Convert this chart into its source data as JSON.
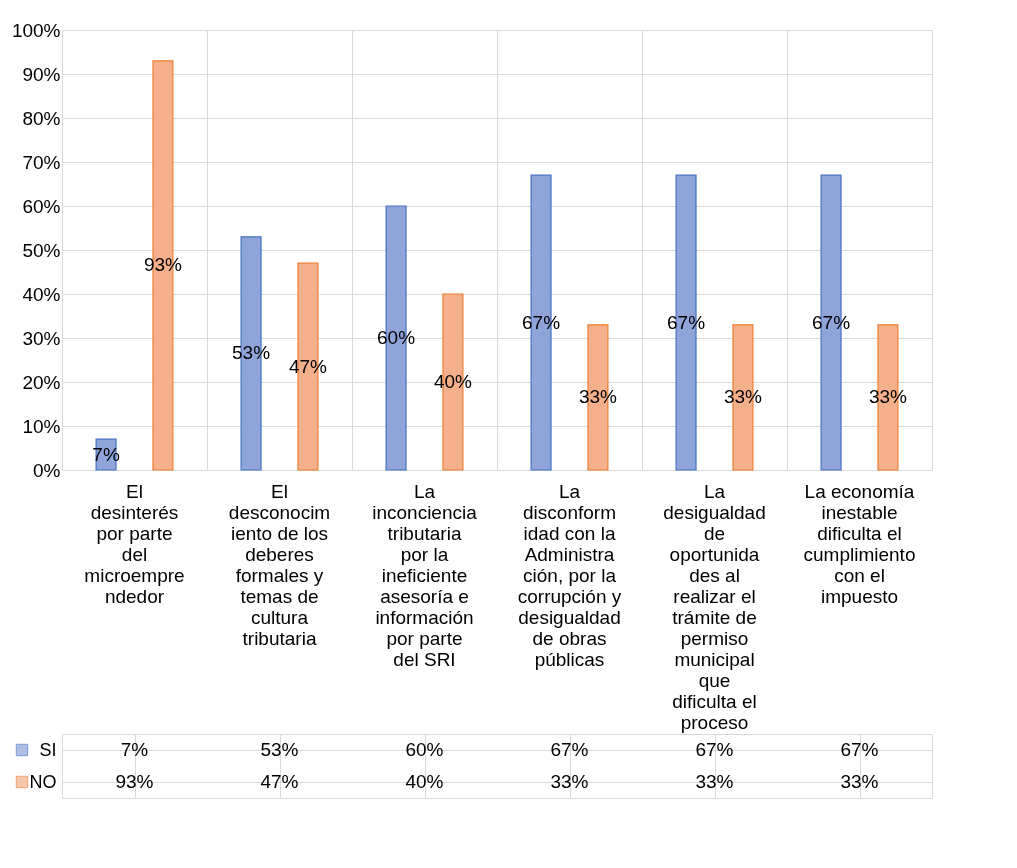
{
  "chart_data": {
    "type": "bar",
    "categories": [
      "El desinterés por parte del microemprendedor",
      "El desconocimiento de los deberes formales y temas de cultura tributaria",
      "La inconciencia tributaria por la ineficiente asesoría e información por parte del SRI",
      "La disconformidad con la Administración, por la corrupción y desigualdad de obras públicas",
      "La desigualdad de oportunidades al realizar el trámite de permiso municipal que dificulta el proceso",
      "La economía inestable dificulta el cumplimiento con el impuesto"
    ],
    "series": [
      {
        "name": "SI",
        "color": "#8fa5d9",
        "values": [
          7,
          53,
          60,
          67,
          67,
          67
        ]
      },
      {
        "name": "NO",
        "color": "#f4b08a",
        "values": [
          93,
          47,
          40,
          33,
          33,
          33
        ]
      }
    ],
    "value_labels": [
      [
        "7%",
        "53%",
        "60%",
        "67%",
        "67%",
        "67%"
      ],
      [
        "93%",
        "47%",
        "40%",
        "33%",
        "33%",
        "33%"
      ]
    ],
    "ylim": [
      0,
      100
    ],
    "yticks": [
      {
        "value": 0,
        "label": "0%"
      },
      {
        "value": 10,
        "label": "10%"
      },
      {
        "value": 20,
        "label": "20%"
      },
      {
        "value": 30,
        "label": "30%"
      },
      {
        "value": 40,
        "label": "40%"
      },
      {
        "value": 50,
        "label": "50%"
      },
      {
        "value": 60,
        "label": "60%"
      },
      {
        "value": 70,
        "label": "70%"
      },
      {
        "value": 80,
        "label": "80%"
      },
      {
        "value": 90,
        "label": "90%"
      },
      {
        "value": 100,
        "label": "100%"
      }
    ],
    "grid": "y",
    "legend": "bottom left"
  }
}
